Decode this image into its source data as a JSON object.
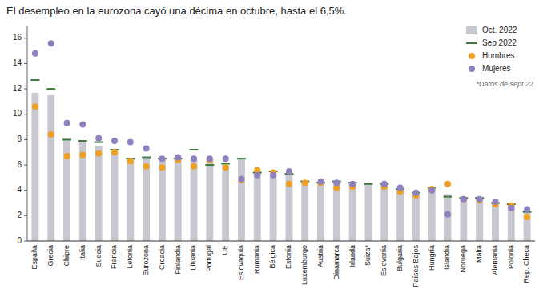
{
  "chart_data": {
    "type": "bar",
    "title": "El desempleo en la eurozona cayó una décima en octubre, hasta el 6,5%.",
    "annotation": "*Datos de sept 22",
    "categories": [
      "España",
      "Grecia",
      "Chipre",
      "Italia",
      "Suecia",
      "Francia",
      "Letonia",
      "Eurozona",
      "Croacia",
      "Finlandia",
      "Lituania",
      "Portugal",
      "UE",
      "Eslovaquia",
      "Rumania",
      "Bélgica",
      "Estonia",
      "Luxemburgo",
      "Austria",
      "Dinamarca",
      "Irlanda",
      "Suiza*",
      "Eslovenia",
      "Bulgaria",
      "Países Bajos",
      "Hungría",
      "Islandia",
      "Noruega",
      "Malta",
      "Alemania",
      "Polonia",
      "Rep. Checa"
    ],
    "series": [
      {
        "name": "Oct. 2022",
        "type": "bar",
        "color": "#c8c8d0",
        "values": [
          11.7,
          11.5,
          8.0,
          7.8,
          7.5,
          7.1,
          6.5,
          6.5,
          6.5,
          6.5,
          6.4,
          6.5,
          6.0,
          6.5,
          5.3,
          5.3,
          5.2,
          4.6,
          4.6,
          4.6,
          4.5,
          4.5,
          4.4,
          4.0,
          3.7,
          4.1,
          3.7,
          3.3,
          3.3,
          3.0,
          2.9,
          2.3
        ]
      },
      {
        "name": "Sep 2022",
        "type": "scatter",
        "marker": "dash",
        "color": "#3a7a3a",
        "values": [
          12.7,
          12.0,
          8.0,
          7.9,
          7.8,
          7.2,
          6.5,
          6.6,
          6.5,
          6.5,
          7.2,
          6.0,
          6.1,
          6.5,
          5.4,
          5.5,
          5.3,
          4.7,
          4.6,
          4.7,
          4.6,
          4.5,
          4.5,
          4.1,
          3.8,
          4.2,
          3.5,
          3.4,
          3.4,
          3.0,
          2.9,
          2.3
        ]
      },
      {
        "name": "Hombres",
        "type": "scatter",
        "marker": "circle",
        "color": "#f0a020",
        "values": [
          10.6,
          8.4,
          6.7,
          6.8,
          6.9,
          7.0,
          6.3,
          5.9,
          5.8,
          6.4,
          5.9,
          6.4,
          5.8,
          4.8,
          5.6,
          5.4,
          4.5,
          4.6,
          4.6,
          4.2,
          4.3,
          null,
          4.3,
          3.9,
          3.6,
          4.1,
          4.5,
          3.3,
          3.2,
          2.9,
          2.8,
          1.9
        ]
      },
      {
        "name": "Mujeres",
        "type": "scatter",
        "marker": "circle",
        "color": "#9080c0",
        "values": [
          14.8,
          15.6,
          9.3,
          9.2,
          8.1,
          7.9,
          7.8,
          7.3,
          6.5,
          6.6,
          6.5,
          6.5,
          6.5,
          4.9,
          5.2,
          5.2,
          5.5,
          null,
          4.7,
          4.6,
          4.5,
          null,
          4.5,
          4.2,
          3.8,
          4.0,
          2.1,
          3.3,
          3.3,
          3.1,
          2.6,
          2.5
        ]
      }
    ],
    "ylim": [
      0,
      17
    ],
    "yticks": [
      0,
      2,
      4,
      6,
      8,
      10,
      12,
      14,
      16
    ],
    "grid": false,
    "legend": "upper right"
  }
}
